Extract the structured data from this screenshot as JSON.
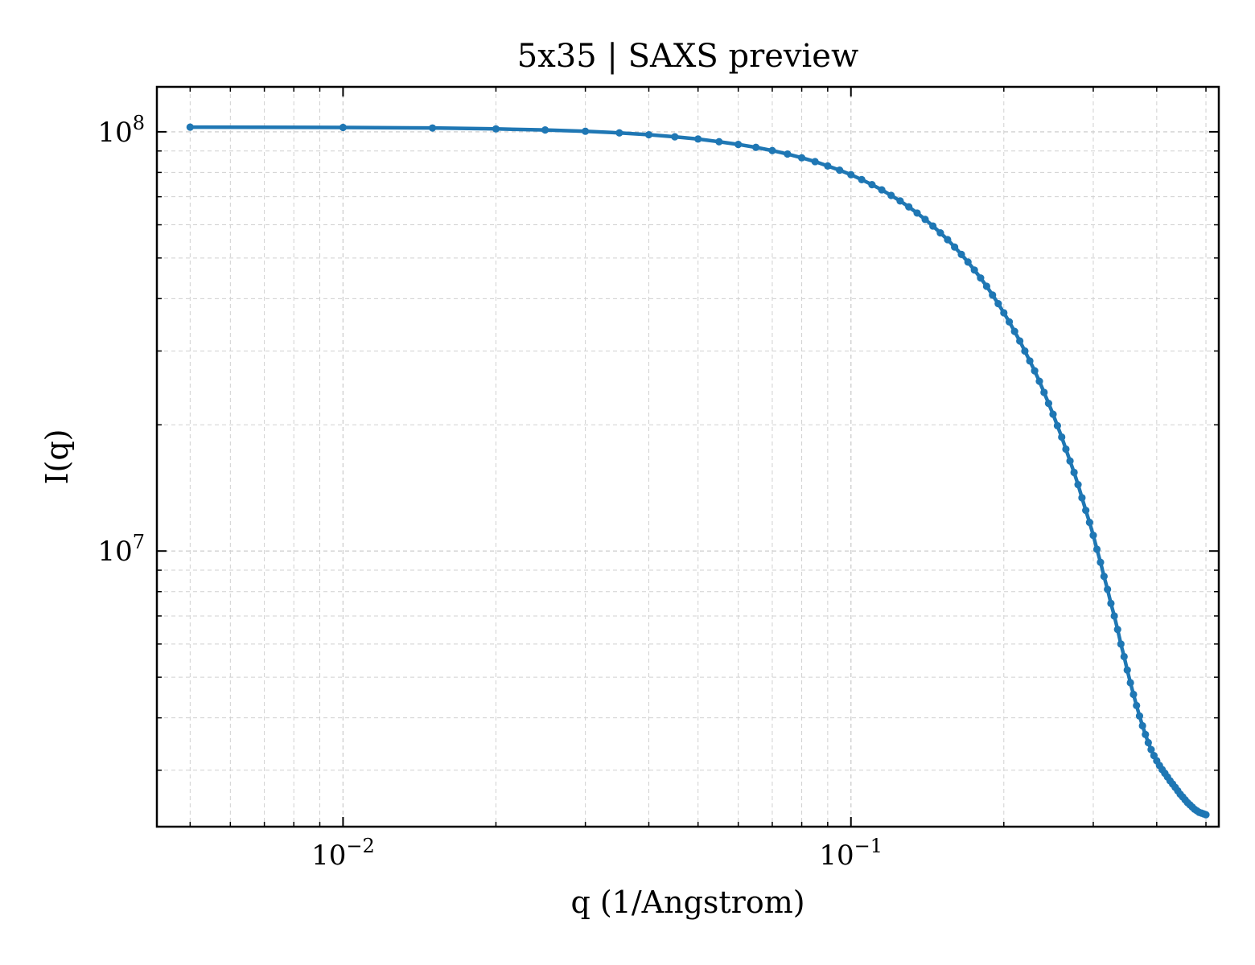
{
  "chart_data": {
    "type": "line",
    "title": "5x35 | SAXS preview",
    "xlabel": "q (1/Angstrom)",
    "ylabel": "I(q)",
    "xscale": "log",
    "yscale": "log",
    "xlim": [
      0.0043,
      0.53
    ],
    "ylim": [
      2200000.0,
      128000000.0
    ],
    "grid": true,
    "legend": "none",
    "x_major_ticks": [
      {
        "value": 0.01,
        "base": "10",
        "exp": "−2"
      },
      {
        "value": 0.1,
        "base": "10",
        "exp": "−1"
      }
    ],
    "y_major_ticks": [
      {
        "value": 10000000,
        "base": "10",
        "exp": "7"
      },
      {
        "value": 100000000,
        "base": "10",
        "exp": "8"
      }
    ],
    "series": [
      {
        "color": "#1f77b4",
        "marker": "dot",
        "x": [
          0.005,
          0.01,
          0.015,
          0.02,
          0.025,
          0.03,
          0.035,
          0.04,
          0.045,
          0.05,
          0.055,
          0.06,
          0.065,
          0.07,
          0.075,
          0.08,
          0.085,
          0.09,
          0.095,
          0.1,
          0.105,
          0.11,
          0.115,
          0.12,
          0.125,
          0.13,
          0.135,
          0.14,
          0.145,
          0.15,
          0.155,
          0.16,
          0.165,
          0.17,
          0.175,
          0.18,
          0.185,
          0.19,
          0.195,
          0.2,
          0.205,
          0.21,
          0.215,
          0.22,
          0.225,
          0.23,
          0.235,
          0.24,
          0.245,
          0.25,
          0.255,
          0.26,
          0.265,
          0.27,
          0.275,
          0.28,
          0.285,
          0.29,
          0.295,
          0.3,
          0.305,
          0.31,
          0.315,
          0.32,
          0.325,
          0.33,
          0.335,
          0.34,
          0.345,
          0.35,
          0.355,
          0.36,
          0.365,
          0.37,
          0.375,
          0.38,
          0.385,
          0.39,
          0.395,
          0.4,
          0.405,
          0.41,
          0.415,
          0.42,
          0.425,
          0.43,
          0.435,
          0.44,
          0.445,
          0.45,
          0.455,
          0.46,
          0.465,
          0.47,
          0.475,
          0.48,
          0.485,
          0.49,
          0.495,
          0.5
        ],
        "y": [
          102600000,
          102400000,
          102100000,
          101600000,
          101000000,
          100300000,
          99400000,
          98400000,
          97300000,
          96100000,
          94700000,
          93300000,
          91800000,
          90200000,
          88500000,
          86700000,
          84900000,
          82900000,
          81000000,
          79000000,
          76900000,
          74800000,
          72700000,
          70500000,
          68400000,
          66200000,
          64000000,
          61800000,
          59600000,
          57400000,
          55300000,
          53100000,
          51000000,
          48900000,
          46800000,
          44800000,
          42800000,
          40800000,
          38900000,
          37000000,
          35200000,
          33400000,
          31700000,
          30000000,
          28400000,
          26900000,
          25400000,
          23900000,
          22500000,
          21200000,
          19900000,
          18700000,
          17500000,
          16400000,
          15400000,
          14400000,
          13400000,
          12500000,
          11700000,
          10900000,
          10100000,
          9400000,
          8700000,
          8100000,
          7500000,
          7000000,
          6500000,
          6000000,
          5600000,
          5200000,
          4850000,
          4550000,
          4280000,
          4040000,
          3830000,
          3650000,
          3490000,
          3360000,
          3250000,
          3160000,
          3080000,
          3010000,
          2950000,
          2890000,
          2830000,
          2780000,
          2730000,
          2680000,
          2630000,
          2590000,
          2550000,
          2510000,
          2480000,
          2450000,
          2420000,
          2400000,
          2380000,
          2370000,
          2360000,
          2350000
        ]
      }
    ]
  }
}
